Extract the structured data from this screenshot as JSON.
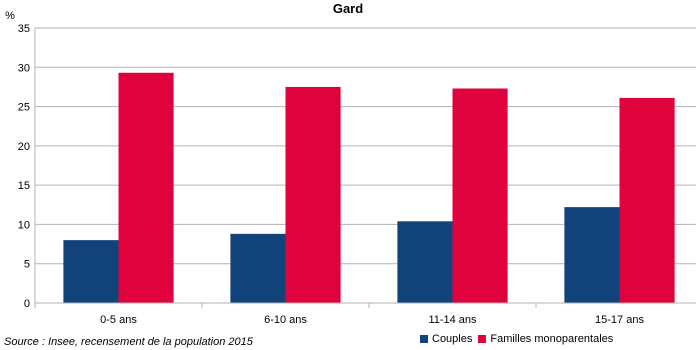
{
  "chart_data": {
    "type": "bar",
    "title": "Gard",
    "unit_label": "%",
    "categories": [
      "0-5 ans",
      "6-10 ans",
      "11-14 ans",
      "15-17 ans"
    ],
    "series": [
      {
        "name": "Couples",
        "color": "#12427a",
        "values": [
          8.0,
          8.8,
          10.4,
          12.2
        ]
      },
      {
        "name": "Familles monoparentales",
        "color": "#e0023c",
        "values": [
          29.3,
          27.5,
          27.3,
          26.1
        ]
      }
    ],
    "ylim": [
      0,
      35
    ],
    "yticks": [
      0,
      5,
      10,
      15,
      20,
      25,
      30,
      35
    ],
    "grid": true,
    "legend": "bottom-right"
  },
  "source": "Source : Insee, recensement de la population 2015"
}
